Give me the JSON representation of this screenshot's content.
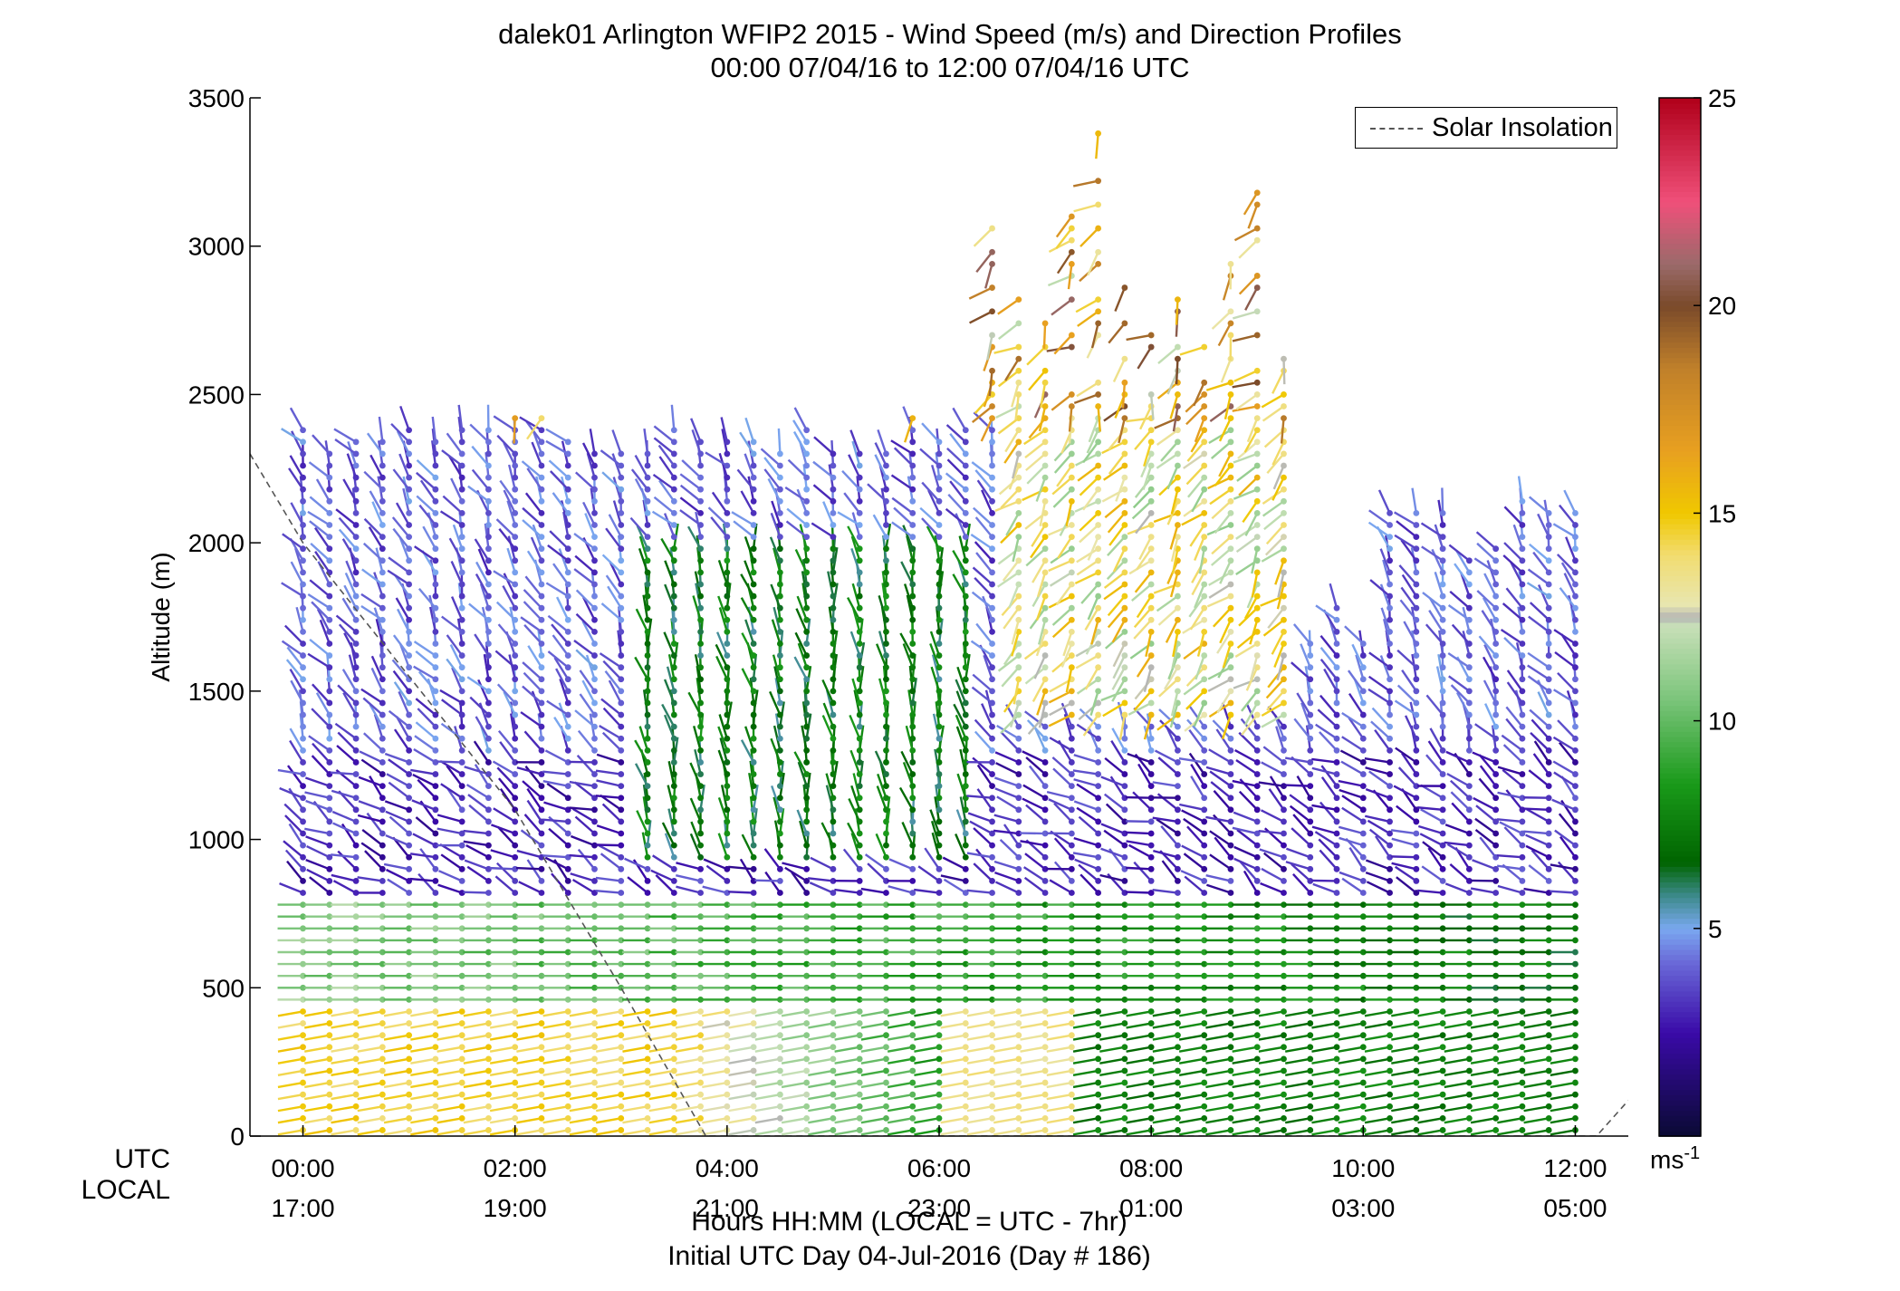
{
  "title": {
    "line1": "dalek01 Arlington WFIP2 2015 - Wind Speed (m/s) and Direction Profiles",
    "line2": "00:00 07/04/16 to 12:00 07/04/16  UTC"
  },
  "row_labels": {
    "utc": "UTC",
    "local": "LOCAL"
  },
  "xaxis_info": {
    "line1": "Hours HH:MM  (LOCAL = UTC - 7hr)",
    "line2": "Initial UTC Day 04-Jul-2016 (Day # 186)"
  },
  "legend": {
    "label": "Solar Insolation"
  },
  "colorbar": {
    "unit_base": "ms",
    "unit_exp": "-1",
    "min": 0,
    "max": 25,
    "ticks": [
      "5",
      "10",
      "15",
      "20",
      "25"
    ],
    "stops": [
      {
        "v": 0,
        "c": "#0a0a33"
      },
      {
        "v": 2.5,
        "c": "#3a0aa8"
      },
      {
        "v": 4.2,
        "c": "#6a6ad8"
      },
      {
        "v": 5.0,
        "c": "#7aa8f0"
      },
      {
        "v": 5.8,
        "c": "#3c8a8a"
      },
      {
        "v": 6.6,
        "c": "#006400"
      },
      {
        "v": 8.5,
        "c": "#1a9a1a"
      },
      {
        "v": 10.5,
        "c": "#7ac47a"
      },
      {
        "v": 12.3,
        "c": "#c8e0b8"
      },
      {
        "v": 12.5,
        "c": "#b4b4b4"
      },
      {
        "v": 12.8,
        "c": "#e8e6b0"
      },
      {
        "v": 14.0,
        "c": "#f2dc70"
      },
      {
        "v": 15.0,
        "c": "#f0c800"
      },
      {
        "v": 16.5,
        "c": "#e8a020"
      },
      {
        "v": 18.5,
        "c": "#c0802a"
      },
      {
        "v": 20.0,
        "c": "#7a4a2a"
      },
      {
        "v": 21.0,
        "c": "#9a6a6a"
      },
      {
        "v": 22.5,
        "c": "#f0507a"
      },
      {
        "v": 25.0,
        "c": "#b0001a"
      }
    ]
  },
  "chart_data": {
    "type": "wind barb profile",
    "title": "dalek01 Arlington WFIP2 2015 - Wind Speed (m/s) and Direction Profiles",
    "subtitle": "00:00 07/04/16 to 12:00 07/04/16  UTC",
    "ylabel": "Altitude (m)",
    "ylim": [
      0,
      3500
    ],
    "yticks": [
      "0",
      "500",
      "1000",
      "1500",
      "2000",
      "2500",
      "3000",
      "3500"
    ],
    "xlim_hours": [
      -0.5,
      12.5
    ],
    "xticks_utc": [
      "00:00",
      "02:00",
      "04:00",
      "06:00",
      "08:00",
      "10:00",
      "12:00"
    ],
    "xticks_local": [
      "17:00",
      "19:00",
      "21:00",
      "23:00",
      "01:00",
      "03:00",
      "05:00"
    ],
    "xtick_hours": [
      0,
      2,
      4,
      6,
      8,
      10,
      12
    ],
    "profile_times_hours": [
      0,
      0.25,
      0.5,
      0.75,
      1,
      1.25,
      1.5,
      1.75,
      2,
      2.25,
      2.5,
      2.75,
      3,
      3.25,
      3.5,
      3.75,
      4,
      4.25,
      4.5,
      4.75,
      5,
      5.25,
      5.5,
      5.75,
      6,
      6.25,
      6.5,
      6.75,
      7,
      7.25,
      7.5,
      7.75,
      8,
      8.25,
      8.5,
      8.75,
      9,
      9.25,
      9.5,
      9.75,
      10,
      10.25,
      10.5,
      10.75,
      11,
      11.25,
      11.5,
      11.75,
      12
    ],
    "speed_unit": "m/s",
    "speed_range": [
      0,
      25
    ],
    "layers": [
      {
        "alt_range_m": [
          0,
          450
        ],
        "speed_ms_start": 14.5,
        "speed_ms_end": 7.5,
        "dir_deg_from": 260
      },
      {
        "alt_range_m": [
          450,
          800
        ],
        "speed_ms_start": 11,
        "speed_ms_end": 7,
        "dir_deg_from": 270
      },
      {
        "alt_range_m": [
          800,
          1300
        ],
        "speed_ms_start": 3,
        "speed_ms_end": 3,
        "dir_deg_from": 300
      },
      {
        "alt_range_m": [
          1300,
          2400
        ],
        "speed_ms_start": 4,
        "speed_ms_end": 4,
        "dir_deg_from": 330
      },
      {
        "alt_range_m": [
          2400,
          3400
        ],
        "speed_ms_start": 15,
        "speed_ms_end": 15,
        "dir_deg_from": 230
      }
    ],
    "solar_insolation_series": {
      "name": "Solar Insolation",
      "points_hours_alt": [
        [
          -0.5,
          2300
        ],
        [
          0,
          2000
        ],
        [
          1,
          1550
        ],
        [
          2,
          1100
        ],
        [
          3,
          500
        ],
        [
          3.8,
          0
        ],
        [
          12.2,
          0
        ],
        [
          12.5,
          120
        ]
      ]
    },
    "legend_position": "top-right",
    "grid": false
  }
}
